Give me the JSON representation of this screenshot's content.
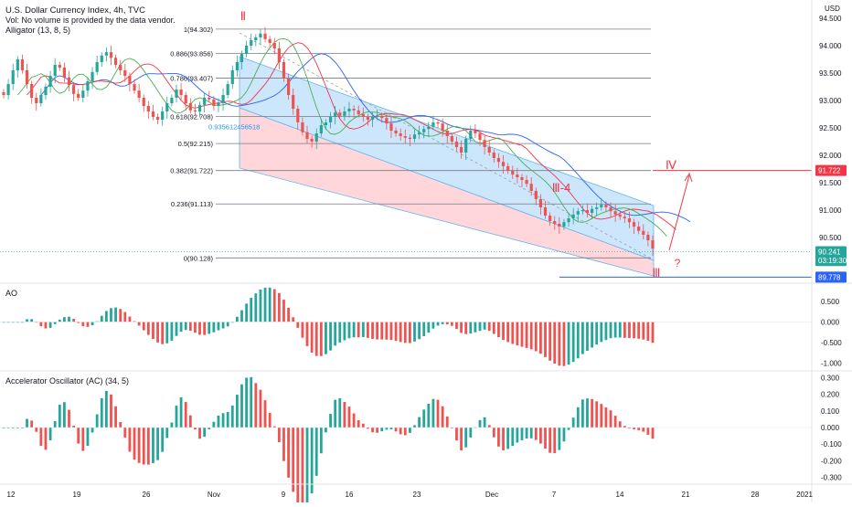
{
  "header": {
    "title": "U.S. Dollar Currency Index, 4h, TVC",
    "volume_note": "Vol: No volume is provided by the data vendor.",
    "indicator": "Alligator (13, 8, 5)"
  },
  "currency": "USD",
  "chart_data": [
    {
      "type": "candlestick",
      "pane": "price",
      "ylim": [
        89.7,
        94.7
      ],
      "x_ticks": [
        "12",
        "19",
        "26",
        "Nov",
        "9",
        "16",
        "23",
        "Dec",
        "7",
        "14",
        "21",
        "28",
        "2021"
      ],
      "y_ticks": [
        "94.500",
        "94.000",
        "93.500",
        "93.000",
        "92.500",
        "92.000",
        "91.500",
        "91.000",
        "90.500"
      ],
      "fib_levels": [
        {
          "label": "1(94.302)",
          "value": 94.302
        },
        {
          "label": "0.886(93.856)",
          "value": 93.856
        },
        {
          "label": "0.786(93.407)",
          "value": 93.407
        },
        {
          "label": "0.618(92.708)",
          "value": 92.708
        },
        {
          "label": "0.5(92.215)",
          "value": 92.215
        },
        {
          "label": "0.382(91.722)",
          "value": 91.722
        },
        {
          "label": "0.236(91.113)",
          "value": 91.113
        },
        {
          "label": "0(90.128)",
          "value": 90.128
        }
      ],
      "extra_fib_label": "0.935612456518",
      "price_tags": [
        {
          "label": "91.722",
          "value": 91.722,
          "color": "#f23645"
        },
        {
          "label": "90.241",
          "value": 90.241,
          "color": "#26a69a"
        },
        {
          "label": "03:19:30",
          "value": 90.08,
          "color": "#26a69a"
        },
        {
          "label": "89.778",
          "value": 89.778,
          "color": "#2962ff"
        }
      ],
      "waves": [
        {
          "label": "Ⅱ",
          "note": "top"
        },
        {
          "label": "Ⅲ-4",
          "note": "mid"
        },
        {
          "label": "Ⅲ",
          "note": "bottom"
        },
        {
          "label": "Ⅳ",
          "note": "target"
        },
        {
          "label": "?",
          "note": "question"
        }
      ],
      "close": [
        93.1,
        93.3,
        93.55,
        93.75,
        93.55,
        93.3,
        93.05,
        92.95,
        93.1,
        93.25,
        93.45,
        93.65,
        93.6,
        93.42,
        93.28,
        93.12,
        93.05,
        93.18,
        93.35,
        93.52,
        93.7,
        93.82,
        93.88,
        93.78,
        93.65,
        93.55,
        93.45,
        93.3,
        93.18,
        93.05,
        92.9,
        92.8,
        92.7,
        92.65,
        92.8,
        92.95,
        93.05,
        93.2,
        93.1,
        92.95,
        92.82,
        92.8,
        92.92,
        93.05,
        93.02,
        92.9,
        92.95,
        93.1,
        93.3,
        93.55,
        93.7,
        93.85,
        94.0,
        94.1,
        94.15,
        94.22,
        94.12,
        94.05,
        93.95,
        93.7,
        93.4,
        93.1,
        92.85,
        92.6,
        92.42,
        92.3,
        92.25,
        92.4,
        92.55,
        92.6,
        92.7,
        92.78,
        92.72,
        92.8,
        92.85,
        92.82,
        92.75,
        92.7,
        92.65,
        92.7,
        92.72,
        92.68,
        92.58,
        92.45,
        92.4,
        92.35,
        92.32,
        92.3,
        92.38,
        92.42,
        92.48,
        92.52,
        92.6,
        92.58,
        92.45,
        92.35,
        92.25,
        92.15,
        92.05,
        92.3,
        92.45,
        92.4,
        92.28,
        92.15,
        92.05,
        91.95,
        91.88,
        91.8,
        91.72,
        91.65,
        91.6,
        91.55,
        91.48,
        91.35,
        91.2,
        91.05,
        90.9,
        90.8,
        90.75,
        90.7,
        90.78,
        90.85,
        90.92,
        90.98,
        91.0,
        90.95,
        91.02,
        91.05,
        91.1,
        91.05,
        90.98,
        90.92,
        90.88,
        90.85,
        90.78,
        90.7,
        90.62,
        90.55,
        90.45,
        90.3
      ],
      "alligator": {
        "jaw": "#2962ff",
        "teeth": "#f23645",
        "lips": "#4caf50"
      }
    },
    {
      "type": "bar",
      "pane": "AO",
      "title": "AO",
      "ylim": [
        -1.15,
        0.9
      ],
      "y_ticks": [
        "0.500",
        "0.000",
        "-0.500",
        "-1.000"
      ]
    },
    {
      "type": "bar",
      "pane": "AC",
      "title": "Accelerator Oscillator (AC) (34, 5)",
      "ylim": [
        -0.33,
        0.33
      ],
      "y_ticks": [
        "0.300",
        "0.200",
        "0.100",
        "0.000",
        "-0.100",
        "-0.200",
        "-0.300"
      ]
    }
  ]
}
